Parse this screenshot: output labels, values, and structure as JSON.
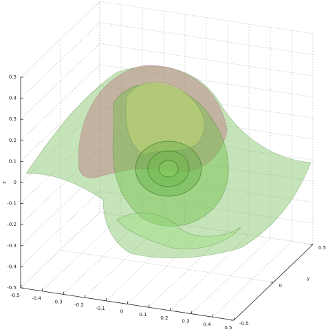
{
  "chart_data": {
    "type": "isosurface3d",
    "xlim": [
      -0.5,
      0.5
    ],
    "ylim": [
      -0.5,
      0.5
    ],
    "zlim": [
      -0.5,
      0.5
    ],
    "xticks": [
      -0.5,
      -0.4,
      -0.3,
      -0.2,
      -0.1,
      0,
      0.1,
      0.2,
      0.3,
      0.4,
      0.5
    ],
    "yticks": [
      -0.5,
      0,
      0.5
    ],
    "zticks": [
      -0.5,
      -0.4,
      -0.3,
      -0.2,
      -0.1,
      0,
      0.1,
      0.2,
      0.3,
      0.4,
      0.5
    ],
    "zlabel": "z",
    "ylabel": "y",
    "grid": true
  }
}
